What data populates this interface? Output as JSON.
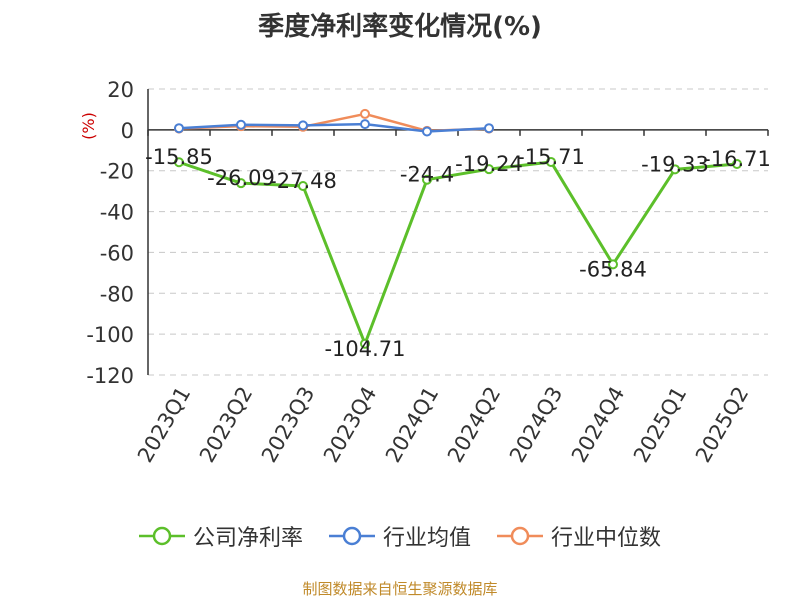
{
  "chart_data": {
    "type": "line",
    "title": "季度净利率变化情况(%)",
    "ylabel": "(%)",
    "categories": [
      "2023Q1",
      "2023Q2",
      "2023Q3",
      "2023Q4",
      "2024Q1",
      "2024Q2",
      "2024Q3",
      "2024Q4",
      "2025Q1",
      "2025Q2"
    ],
    "ylim": [
      -120,
      20
    ],
    "yticks": [
      20,
      0,
      -20,
      -40,
      -60,
      -80,
      -100,
      -120
    ],
    "grid": true,
    "legend_position": "bottom",
    "series": [
      {
        "name": "公司净利率",
        "color": "#5cbf2a",
        "show_labels": true,
        "values": [
          -15.85,
          -26.09,
          -27.48,
          -104.71,
          -24.4,
          -19.24,
          -15.71,
          -65.84,
          -19.33,
          -16.71
        ],
        "labels": [
          "-15.85",
          "-26.09",
          "-27.48",
          "-104.71",
          "-24.4",
          "-19.24",
          "-15.71",
          "-65.84",
          "-19.33",
          "-16.71"
        ]
      },
      {
        "name": "行业均值",
        "color": "#4a7fd4",
        "show_labels": false,
        "values": [
          0.8,
          2.5,
          2.2,
          2.8,
          -0.8,
          0.8,
          null,
          null,
          null,
          null
        ]
      },
      {
        "name": "行业中位数",
        "color": "#f08c5a",
        "show_labels": false,
        "values": [
          0.6,
          1.8,
          1.5,
          7.8,
          -0.5,
          0.6,
          null,
          null,
          null,
          null
        ]
      }
    ]
  },
  "source": "制图数据来自恒生聚源数据库"
}
